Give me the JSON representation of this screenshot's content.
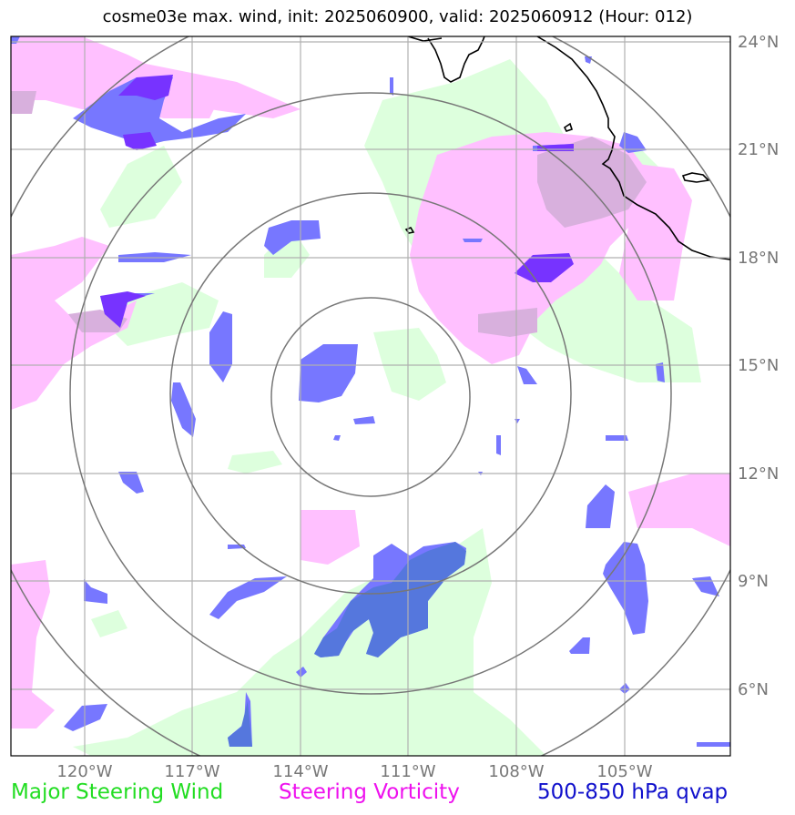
{
  "title": "cosme03e max. wind, init: 2025060900, valid: 2025060912 (Hour: 012)",
  "lon_labels": [
    "120°W",
    "117°W",
    "114°W",
    "111°W",
    "108°W",
    "105°W"
  ],
  "lat_labels": [
    "24°N",
    "21°N",
    "18°N",
    "15°N",
    "12°N",
    "9°N",
    "6°N"
  ],
  "legend": {
    "wind": "Major Steering Wind",
    "vorticity": "Steering Vorticity",
    "qvap": "500-850 hPa qvap"
  },
  "colors": {
    "wind": "#ddffdd",
    "vorticity": "#ffc0ff",
    "qvap": "#7777ff",
    "qvap_dark": "#7733ff",
    "grid": "#b0b0b0",
    "rings": "#777777"
  }
}
